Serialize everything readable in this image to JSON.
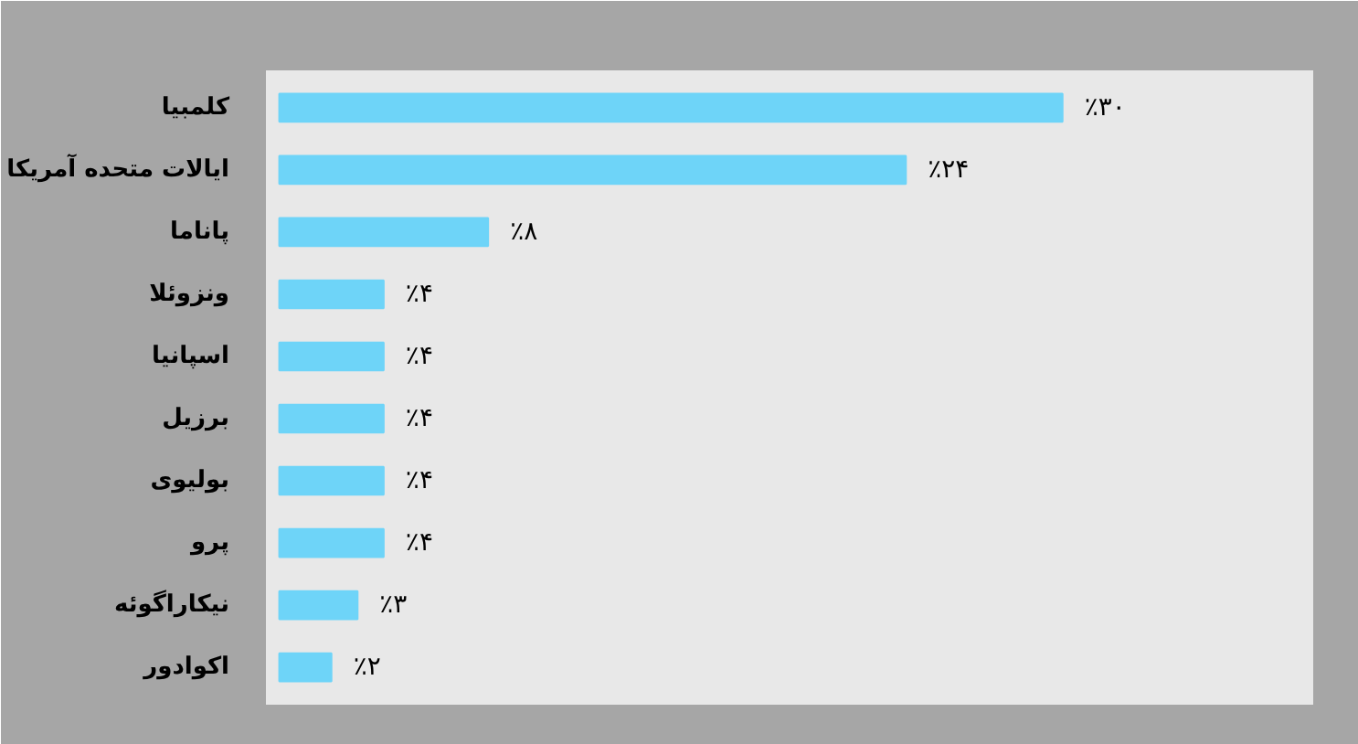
{
  "chart_data": {
    "type": "bar",
    "orientation": "horizontal",
    "categories": [
      "کلمبیا",
      "ایالات متحده آمریکا",
      "پاناما",
      "ونزوئلا",
      "اسپانیا",
      "برزیل",
      "بولیوی",
      "پرو",
      "نیکاراگوئه",
      "اکوادور"
    ],
    "values": [
      30,
      24,
      8,
      4,
      4,
      4,
      4,
      4,
      3,
      2
    ],
    "value_labels": [
      "٪۳۰",
      "٪۲۴",
      "٪۸",
      "٪۴",
      "٪۴",
      "٪۴",
      "٪۴",
      "٪۴",
      "٪۳",
      "٪۲"
    ],
    "color": "#6ed4f8"
  }
}
